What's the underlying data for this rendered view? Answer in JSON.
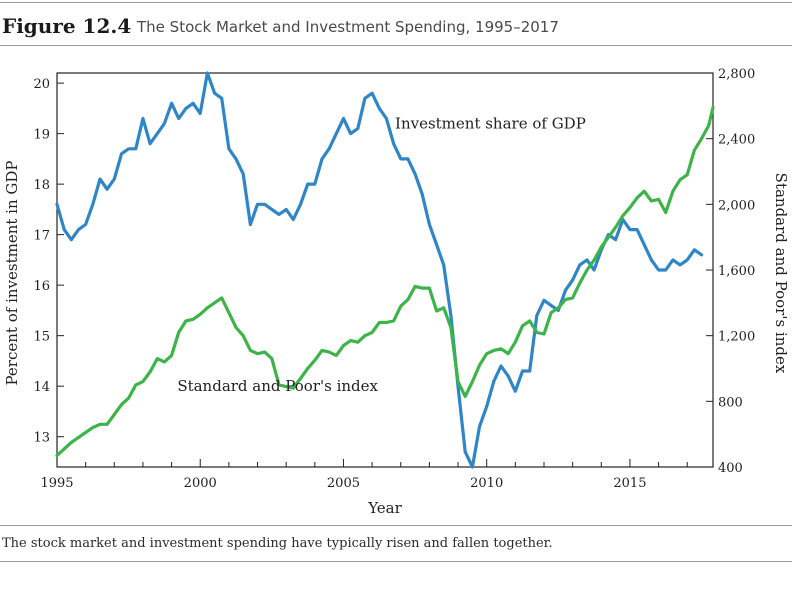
{
  "figure": {
    "number": "Figure 12.4",
    "title": "The Stock Market and Investment Spending, 1995–2017",
    "caption": "The stock market and investment spending have typically risen and fallen together."
  },
  "chart_data": {
    "type": "line",
    "xlabel": "Year",
    "ylabel_left": "Percent of investment in GDP",
    "ylabel_right": "Standard and Poor's index",
    "xlim": [
      1995,
      2017.9
    ],
    "ylim_left": [
      12.4,
      20.2
    ],
    "ylim_right": [
      400,
      2800
    ],
    "x_ticks": [
      1995,
      2000,
      2005,
      2010,
      2015
    ],
    "y_ticks_left": [
      13,
      14,
      15,
      16,
      17,
      18,
      19,
      20
    ],
    "y_ticks_right": [
      "400",
      "800",
      "1,200",
      "1,600",
      "2,000",
      "2,400",
      "2,800"
    ],
    "grid": false,
    "series": [
      {
        "name": "Investment share of GDP",
        "axis": "left",
        "color": "#2e86c8",
        "points": [
          [
            1995.0,
            17.6
          ],
          [
            1995.25,
            17.1
          ],
          [
            1995.5,
            16.9
          ],
          [
            1995.75,
            17.1
          ],
          [
            1996.0,
            17.2
          ],
          [
            1996.25,
            17.6
          ],
          [
            1996.5,
            18.1
          ],
          [
            1996.75,
            17.9
          ],
          [
            1997.0,
            18.1
          ],
          [
            1997.25,
            18.6
          ],
          [
            1997.5,
            18.7
          ],
          [
            1997.75,
            18.7
          ],
          [
            1998.0,
            19.3
          ],
          [
            1998.25,
            18.8
          ],
          [
            1998.5,
            19.0
          ],
          [
            1998.75,
            19.2
          ],
          [
            1999.0,
            19.6
          ],
          [
            1999.25,
            19.3
          ],
          [
            1999.5,
            19.5
          ],
          [
            1999.75,
            19.6
          ],
          [
            2000.0,
            19.4
          ],
          [
            2000.25,
            20.2
          ],
          [
            2000.5,
            19.8
          ],
          [
            2000.75,
            19.7
          ],
          [
            2001.0,
            18.7
          ],
          [
            2001.25,
            18.5
          ],
          [
            2001.5,
            18.2
          ],
          [
            2001.75,
            17.2
          ],
          [
            2002.0,
            17.6
          ],
          [
            2002.25,
            17.6
          ],
          [
            2002.5,
            17.5
          ],
          [
            2002.75,
            17.4
          ],
          [
            2003.0,
            17.5
          ],
          [
            2003.25,
            17.3
          ],
          [
            2003.5,
            17.6
          ],
          [
            2003.75,
            18.0
          ],
          [
            2004.0,
            18.0
          ],
          [
            2004.25,
            18.5
          ],
          [
            2004.5,
            18.7
          ],
          [
            2004.75,
            19.0
          ],
          [
            2005.0,
            19.3
          ],
          [
            2005.25,
            19.0
          ],
          [
            2005.5,
            19.1
          ],
          [
            2005.75,
            19.7
          ],
          [
            2006.0,
            19.8
          ],
          [
            2006.25,
            19.5
          ],
          [
            2006.5,
            19.3
          ],
          [
            2006.75,
            18.8
          ],
          [
            2007.0,
            18.5
          ],
          [
            2007.25,
            18.5
          ],
          [
            2007.5,
            18.2
          ],
          [
            2007.75,
            17.8
          ],
          [
            2008.0,
            17.2
          ],
          [
            2008.25,
            16.8
          ],
          [
            2008.5,
            16.4
          ],
          [
            2008.75,
            15.4
          ],
          [
            2009.0,
            14.0
          ],
          [
            2009.25,
            12.7
          ],
          [
            2009.5,
            12.4
          ],
          [
            2009.75,
            13.2
          ],
          [
            2010.0,
            13.6
          ],
          [
            2010.25,
            14.1
          ],
          [
            2010.5,
            14.4
          ],
          [
            2010.75,
            14.2
          ],
          [
            2011.0,
            13.9
          ],
          [
            2011.25,
            14.3
          ],
          [
            2011.5,
            14.3
          ],
          [
            2011.75,
            15.4
          ],
          [
            2012.0,
            15.7
          ],
          [
            2012.25,
            15.6
          ],
          [
            2012.5,
            15.5
          ],
          [
            2012.75,
            15.9
          ],
          [
            2013.0,
            16.1
          ],
          [
            2013.25,
            16.4
          ],
          [
            2013.5,
            16.5
          ],
          [
            2013.75,
            16.3
          ],
          [
            2014.0,
            16.7
          ],
          [
            2014.25,
            17.0
          ],
          [
            2014.5,
            16.9
          ],
          [
            2014.75,
            17.3
          ],
          [
            2015.0,
            17.1
          ],
          [
            2015.25,
            17.1
          ],
          [
            2015.5,
            16.8
          ],
          [
            2015.75,
            16.5
          ],
          [
            2016.0,
            16.3
          ],
          [
            2016.25,
            16.3
          ],
          [
            2016.5,
            16.5
          ],
          [
            2016.75,
            16.4
          ],
          [
            2017.0,
            16.5
          ],
          [
            2017.25,
            16.7
          ],
          [
            2017.5,
            16.6
          ]
        ]
      },
      {
        "name": "Standard and Poor's index",
        "axis": "right",
        "color": "#3cb44a",
        "points": [
          [
            1995.0,
            470
          ],
          [
            1995.25,
            510
          ],
          [
            1995.5,
            550
          ],
          [
            1995.75,
            580
          ],
          [
            1996.0,
            610
          ],
          [
            1996.25,
            640
          ],
          [
            1996.5,
            660
          ],
          [
            1996.75,
            660
          ],
          [
            1997.0,
            720
          ],
          [
            1997.25,
            780
          ],
          [
            1997.5,
            820
          ],
          [
            1997.75,
            900
          ],
          [
            1998.0,
            920
          ],
          [
            1998.25,
            980
          ],
          [
            1998.5,
            1060
          ],
          [
            1998.75,
            1040
          ],
          [
            1999.0,
            1080
          ],
          [
            1999.25,
            1220
          ],
          [
            1999.5,
            1290
          ],
          [
            1999.75,
            1300
          ],
          [
            2000.0,
            1330
          ],
          [
            2000.25,
            1370
          ],
          [
            2000.5,
            1400
          ],
          [
            2000.75,
            1430
          ],
          [
            2001.0,
            1340
          ],
          [
            2001.25,
            1250
          ],
          [
            2001.5,
            1200
          ],
          [
            2001.75,
            1110
          ],
          [
            2002.0,
            1090
          ],
          [
            2002.25,
            1100
          ],
          [
            2002.5,
            1060
          ],
          [
            2002.75,
            900
          ],
          [
            2003.0,
            890
          ],
          [
            2003.25,
            880
          ],
          [
            2003.5,
            940
          ],
          [
            2003.75,
            1000
          ],
          [
            2004.0,
            1050
          ],
          [
            2004.25,
            1110
          ],
          [
            2004.5,
            1100
          ],
          [
            2004.75,
            1080
          ],
          [
            2005.0,
            1140
          ],
          [
            2005.25,
            1170
          ],
          [
            2005.5,
            1160
          ],
          [
            2005.75,
            1200
          ],
          [
            2006.0,
            1220
          ],
          [
            2006.25,
            1280
          ],
          [
            2006.5,
            1280
          ],
          [
            2006.75,
            1290
          ],
          [
            2007.0,
            1380
          ],
          [
            2007.25,
            1420
          ],
          [
            2007.5,
            1500
          ],
          [
            2007.75,
            1490
          ],
          [
            2008.0,
            1490
          ],
          [
            2008.25,
            1350
          ],
          [
            2008.5,
            1370
          ],
          [
            2008.75,
            1250
          ],
          [
            2009.0,
            920
          ],
          [
            2009.25,
            830
          ],
          [
            2009.5,
            920
          ],
          [
            2009.75,
            1020
          ],
          [
            2010.0,
            1090
          ],
          [
            2010.25,
            1110
          ],
          [
            2010.5,
            1120
          ],
          [
            2010.75,
            1090
          ],
          [
            2011.0,
            1160
          ],
          [
            2011.25,
            1260
          ],
          [
            2011.5,
            1290
          ],
          [
            2011.75,
            1220
          ],
          [
            2012.0,
            1210
          ],
          [
            2012.25,
            1340
          ],
          [
            2012.5,
            1370
          ],
          [
            2012.75,
            1420
          ],
          [
            2013.0,
            1430
          ],
          [
            2013.25,
            1520
          ],
          [
            2013.5,
            1600
          ],
          [
            2013.75,
            1660
          ],
          [
            2014.0,
            1740
          ],
          [
            2014.25,
            1800
          ],
          [
            2014.5,
            1860
          ],
          [
            2014.75,
            1930
          ],
          [
            2015.0,
            1980
          ],
          [
            2015.25,
            2040
          ],
          [
            2015.5,
            2080
          ],
          [
            2015.75,
            2020
          ],
          [
            2016.0,
            2030
          ],
          [
            2016.25,
            1950
          ],
          [
            2016.5,
            2080
          ],
          [
            2016.75,
            2150
          ],
          [
            2017.0,
            2180
          ],
          [
            2017.25,
            2330
          ],
          [
            2017.5,
            2400
          ],
          [
            2017.75,
            2480
          ],
          [
            2017.9,
            2590
          ]
        ]
      }
    ],
    "annotations": [
      {
        "text": "Investment share of GDP",
        "x": 2006.8,
        "y": 19.1,
        "axis": "left"
      },
      {
        "text": "Standard and Poor's index",
        "x": 1999.2,
        "y": 13.9,
        "axis": "left"
      }
    ]
  }
}
